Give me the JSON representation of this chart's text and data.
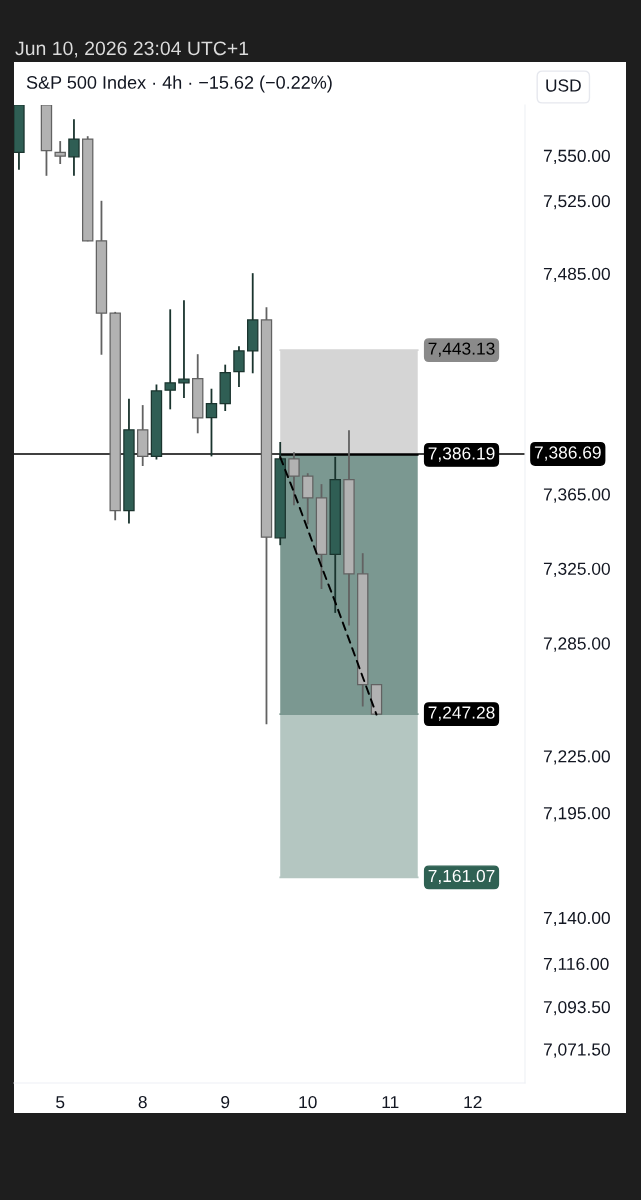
{
  "chart_data": {
    "type": "candlestick",
    "title": "S&P 500 Index · 4h · −15.62 (−0.22%)",
    "ylabel": "USD",
    "annotations": [
      "Jun 10, 2026 23:04 UTC+1"
    ],
    "categories": [
      null,
      null,
      null,
      "5",
      null,
      null,
      null,
      null,
      null,
      "8",
      null,
      null,
      null,
      null,
      null,
      "9",
      null,
      null,
      null,
      null,
      null,
      "10",
      null,
      null,
      null,
      null,
      null,
      "11",
      null,
      null,
      null,
      null,
      null,
      "12",
      null,
      null,
      null
    ],
    "ohlc": [
      [
        7551.8,
        7578,
        7542.1,
        7578
      ],
      null,
      [
        7578,
        7578,
        7538.8,
        7552.7
      ],
      [
        7551.8,
        7558.0,
        7545.3,
        7549.7
      ],
      [
        7549.3,
        7570.1,
        7538.8,
        7559.1
      ],
      [
        7559.1,
        7560.7,
        7502.7,
        7503.0
      ],
      [
        7503.0,
        7525.0,
        7440.6,
        7463.3
      ],
      [
        7463.3,
        7464.0,
        7350.9,
        7356.1
      ],
      [
        7356.1,
        7416.6,
        7349.2,
        7399.8
      ],
      [
        7399.8,
        7413.2,
        7380.2,
        7385.4
      ],
      [
        7385.4,
        7424.4,
        7383.7,
        7420.9
      ],
      [
        7421.3,
        7465.4,
        7410.9,
        7425.3
      ],
      [
        7425.3,
        7470.3,
        7417.1,
        7427.3
      ],
      [
        7427.6,
        7440.9,
        7397.9,
        7406.2
      ],
      [
        7406.4,
        7422.1,
        7385.4,
        7414.0
      ],
      [
        7414.0,
        7435.2,
        7410.0,
        7430.8
      ],
      [
        7431.4,
        7445.3,
        7423.0,
        7442.7
      ],
      [
        7442.7,
        7485.2,
        7430.5,
        7459.6
      ],
      [
        7459.6,
        7466.6,
        7241.9,
        7341.8
      ],
      [
        7341.5,
        7393.2,
        7337.5,
        7384.0
      ],
      [
        7384.0,
        7387.7,
        7359.0,
        7374.7
      ],
      [
        7374.7,
        7376.3,
        7348.7,
        7363.0
      ],
      [
        7363.0,
        7370.4,
        7314.0,
        7332.5
      ],
      [
        7332.5,
        7385.1,
        7301.2,
        7372.8
      ],
      [
        7372.8,
        7399.6,
        7294.4,
        7322.1
      ],
      [
        7322.1,
        7333.2,
        7251.3,
        7262.9
      ],
      [
        7262.9,
        7262.9,
        7247.28,
        7247.28
      ],
      null,
      null,
      null,
      null,
      null,
      null,
      null,
      null,
      null,
      null
    ],
    "colors": [
      "#2f5e54",
      null,
      "#b2b2b2",
      "#b2b2b2",
      "#2f5e54",
      "#b2b2b2",
      "#b2b2b2",
      "#b2b2b2",
      "#2f5e54",
      "#b2b2b2",
      "#2f5e54",
      "#2f5e54",
      "#2f5e54",
      "#b2b2b2",
      "#2f5e54",
      "#2f5e54",
      "#2f5e54",
      "#2f5e54",
      "#b2b2b2",
      "#2f5e54",
      "#b2b2b2",
      "#b2b2b2",
      "#b2b2b2",
      "#2f5e54",
      "#b2b2b2",
      "#b2b2b2",
      "#b2b2b2",
      null,
      null,
      null,
      null,
      null,
      null,
      null,
      null,
      null,
      null
    ],
    "series": [
      {
        "type": "line",
        "color": "#d5d5d5",
        "values": [
          null,
          null,
          null,
          null,
          null,
          null,
          null,
          null,
          null,
          null,
          null,
          null,
          null,
          null,
          null,
          null,
          null,
          null,
          null,
          7443.13,
          7443.13,
          7443.13,
          7443.13,
          7443.13,
          7443.13,
          7443.13,
          7443.13,
          7443.13,
          7443.13,
          7443.13,
          null,
          null,
          null,
          null,
          null,
          null,
          null
        ],
        "lower": [
          null,
          null,
          null,
          null,
          null,
          null,
          null,
          null,
          null,
          null,
          null,
          null,
          null,
          null,
          null,
          null,
          null,
          null,
          null,
          7386.19,
          7386.19,
          7386.19,
          7386.19,
          7386.19,
          7386.19,
          7386.19,
          7386.19,
          7386.19,
          7386.19,
          7386.19,
          null,
          null,
          null,
          null,
          null,
          null,
          null
        ],
        "upper": [
          null,
          null,
          null,
          null,
          null,
          null,
          null,
          null,
          null,
          null,
          null,
          null,
          null,
          null,
          null,
          null,
          null,
          null,
          null,
          7443.13,
          7443.13,
          7443.13,
          7443.13,
          7443.13,
          7443.13,
          7443.13,
          7443.13,
          7443.13,
          7443.13,
          7443.13,
          null,
          null,
          null,
          null,
          null,
          null,
          null
        ],
        "value_labels": [
          null,
          null,
          null,
          null,
          null,
          null,
          null,
          null,
          null,
          null,
          null,
          null,
          null,
          null,
          null,
          null,
          null,
          null,
          null,
          null,
          null,
          null,
          null,
          null,
          null,
          null,
          null,
          null,
          null,
          "7,443.13",
          null,
          null,
          null,
          null,
          null,
          null,
          null
        ]
      },
      {
        "type": "line",
        "color": "#000000",
        "values": [
          null,
          null,
          null,
          null,
          null,
          null,
          null,
          null,
          null,
          null,
          null,
          null,
          null,
          null,
          null,
          null,
          null,
          null,
          null,
          7386.19,
          7386.19,
          7386.19,
          7386.19,
          7386.19,
          7386.19,
          7386.19,
          7386.19,
          7386.19,
          7386.19,
          7386.19,
          null,
          null,
          null,
          null,
          null,
          null,
          null
        ],
        "value_labels": [
          null,
          null,
          null,
          null,
          null,
          null,
          null,
          null,
          null,
          null,
          null,
          null,
          null,
          null,
          null,
          null,
          null,
          null,
          null,
          null,
          null,
          null,
          null,
          null,
          null,
          null,
          null,
          null,
          null,
          "7,386.19",
          null,
          null,
          null,
          null,
          null,
          null,
          null
        ]
      },
      {
        "type": "line",
        "color": "#7b9891",
        "values": [
          null,
          null,
          null,
          null,
          null,
          null,
          null,
          null,
          null,
          null,
          null,
          null,
          null,
          null,
          null,
          null,
          null,
          null,
          null,
          7247.28,
          7247.28,
          7247.28,
          7247.28,
          7247.28,
          7247.28,
          7247.28,
          7247.28,
          7247.28,
          7247.28,
          7247.28,
          null,
          null,
          null,
          null,
          null,
          null,
          null
        ],
        "lower": [
          null,
          null,
          null,
          null,
          null,
          null,
          null,
          null,
          null,
          null,
          null,
          null,
          null,
          null,
          null,
          null,
          null,
          null,
          null,
          7247.28,
          7247.28,
          7247.28,
          7247.28,
          7247.28,
          7247.28,
          7247.28,
          7247.28,
          7247.28,
          7247.28,
          7247.28,
          null,
          null,
          null,
          null,
          null,
          null,
          null
        ],
        "upper": [
          null,
          null,
          null,
          null,
          null,
          null,
          null,
          null,
          null,
          null,
          null,
          null,
          null,
          null,
          null,
          null,
          null,
          null,
          null,
          7386.19,
          7386.19,
          7386.19,
          7386.19,
          7386.19,
          7386.19,
          7386.19,
          7386.19,
          7386.19,
          7386.19,
          7386.19,
          null,
          null,
          null,
          null,
          null,
          null,
          null
        ],
        "value_labels": [
          null,
          null,
          null,
          null,
          null,
          null,
          null,
          null,
          null,
          null,
          null,
          null,
          null,
          null,
          null,
          null,
          null,
          null,
          null,
          null,
          null,
          null,
          null,
          null,
          null,
          null,
          null,
          null,
          null,
          "7,247.28",
          null,
          null,
          null,
          null,
          null,
          null,
          null
        ]
      },
      {
        "type": "line",
        "color": "#b4c6c1",
        "values": [
          null,
          null,
          null,
          null,
          null,
          null,
          null,
          null,
          null,
          null,
          null,
          null,
          null,
          null,
          null,
          null,
          null,
          null,
          null,
          7161.07,
          7161.07,
          7161.07,
          7161.07,
          7161.07,
          7161.07,
          7161.07,
          7161.07,
          7161.07,
          7161.07,
          7161.07,
          null,
          null,
          null,
          null,
          null,
          null,
          null
        ],
        "lower": [
          null,
          null,
          null,
          null,
          null,
          null,
          null,
          null,
          null,
          null,
          null,
          null,
          null,
          null,
          null,
          null,
          null,
          null,
          null,
          7161.07,
          7161.07,
          7161.07,
          7161.07,
          7161.07,
          7161.07,
          7161.07,
          7161.07,
          7161.07,
          7161.07,
          7161.07,
          null,
          null,
          null,
          null,
          null,
          null,
          null
        ],
        "upper": [
          null,
          null,
          null,
          null,
          null,
          null,
          null,
          null,
          null,
          null,
          null,
          null,
          null,
          null,
          null,
          null,
          null,
          null,
          null,
          7247.28,
          7247.28,
          7247.28,
          7247.28,
          7247.28,
          7247.28,
          7247.28,
          7247.28,
          7247.28,
          7247.28,
          7247.28,
          null,
          null,
          null,
          null,
          null,
          null,
          null
        ],
        "value_labels": [
          null,
          null,
          null,
          null,
          null,
          null,
          null,
          null,
          null,
          null,
          null,
          null,
          null,
          null,
          null,
          null,
          null,
          null,
          null,
          null,
          null,
          null,
          null,
          null,
          null,
          null,
          null,
          null,
          null,
          "7,161.07",
          null,
          null,
          null,
          null,
          null,
          null,
          null
        ]
      },
      {
        "type": "line",
        "color": "#000000",
        "line_style": "dashed",
        "values": [
          null,
          null,
          null,
          null,
          null,
          null,
          null,
          null,
          null,
          null,
          null,
          null,
          null,
          null,
          null,
          null,
          null,
          null,
          null,
          7385,
          7366,
          7346,
          7326,
          7307,
          7287,
          7267,
          7247,
          null,
          null,
          null,
          null,
          null,
          null,
          null,
          null,
          null,
          null
        ]
      }
    ],
    "log": true,
    "ylim": [
      7054,
      7578
    ],
    "yticks": [
      {
        "value": 7550,
        "label": "7,550.00"
      },
      {
        "value": 7525,
        "label": "7,525.00"
      },
      {
        "value": 7485,
        "label": "7,485.00"
      },
      {
        "value": 7365,
        "label": "7,365.00"
      },
      {
        "value": 7325,
        "label": "7,325.00"
      },
      {
        "value": 7285,
        "label": "7,285.00"
      },
      {
        "value": 7225,
        "label": "7,225.00"
      },
      {
        "value": 7195,
        "label": "7,195.00"
      },
      {
        "value": 7140,
        "label": "7,140.00"
      },
      {
        "value": 7116,
        "label": "7,116.00"
      },
      {
        "value": 7093.5,
        "label": "7,093.50"
      },
      {
        "value": 7071.5,
        "label": "7,071.50"
      }
    ],
    "ref_lines": [
      {
        "axis": "y",
        "value": 7386.69,
        "label": "7,386.69",
        "color": "#000000"
      }
    ]
  }
}
